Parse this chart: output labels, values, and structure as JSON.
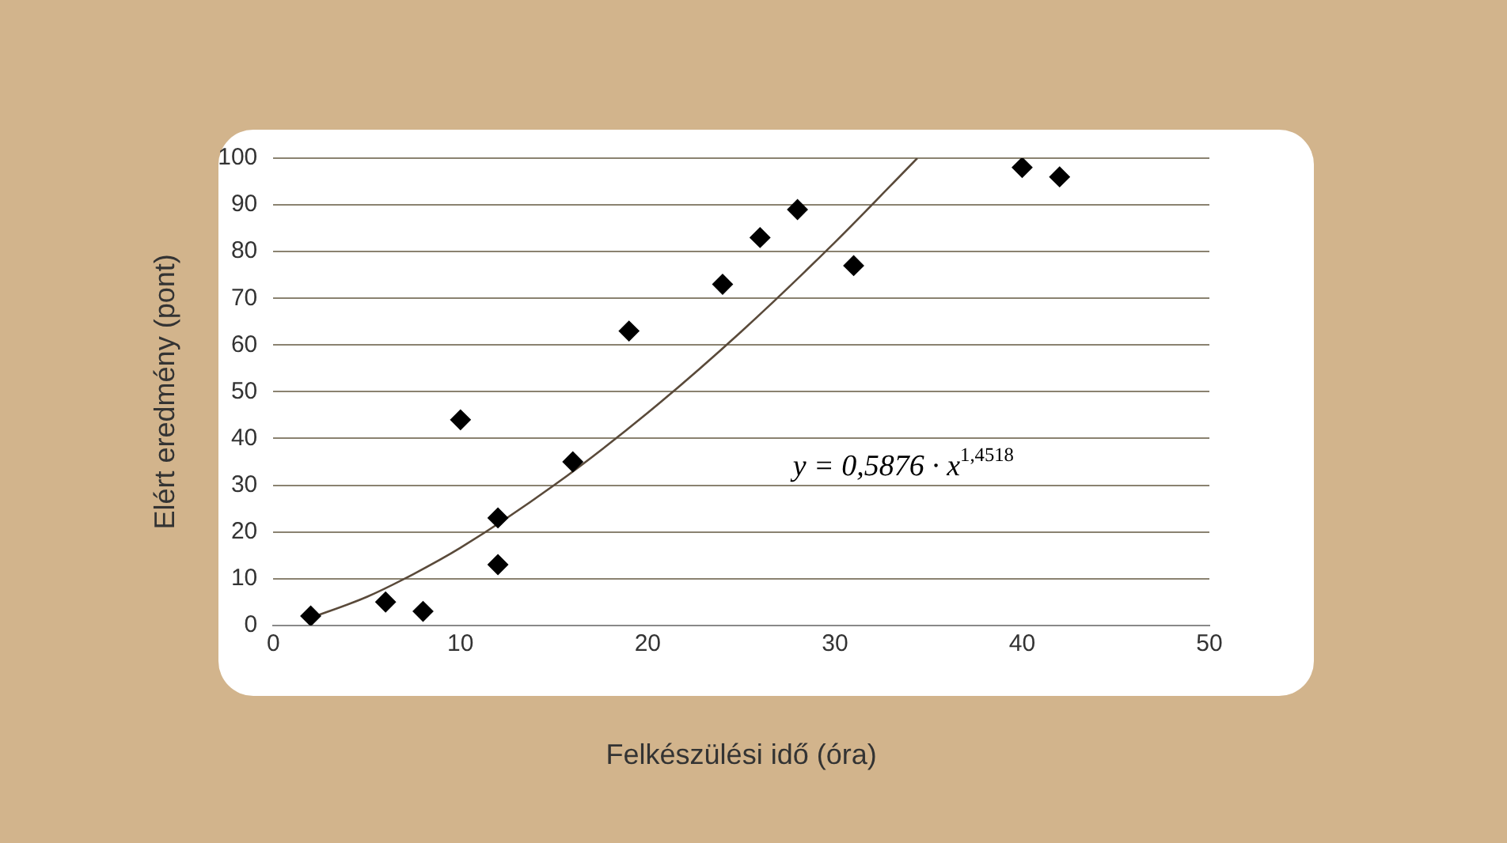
{
  "chart_data": {
    "type": "scatter",
    "xlabel": "Felkészülési idő (óra)",
    "ylabel": "Elért eredmény (pont)",
    "series": [
      {
        "type": "scatter",
        "marker": "diamond",
        "color": "#000000",
        "x": [
          2,
          6,
          8,
          10,
          12,
          12,
          16,
          19,
          24,
          26,
          28,
          31,
          40,
          42
        ],
        "values": [
          2,
          5,
          3,
          44,
          23,
          13,
          35,
          63,
          73,
          83,
          89,
          77,
          98,
          96
        ]
      },
      {
        "type": "line",
        "marker": "none",
        "color": "#5a4a3a",
        "x": [
          2,
          5,
          7.5,
          10,
          15,
          20,
          25,
          30,
          34.4
        ],
        "values": [
          1.6,
          6.1,
          11,
          16.6,
          30,
          45.5,
          62.9,
          82,
          100
        ]
      }
    ],
    "xlim": [
      0,
      50
    ],
    "xticks": [
      0,
      10,
      20,
      30,
      40,
      50
    ],
    "ylim": [
      0,
      100
    ],
    "yticks": [
      0,
      10,
      20,
      30,
      40,
      50,
      60,
      70,
      80,
      90,
      100
    ],
    "grid": "y",
    "legend": false,
    "annotations": [
      "y = 0,5876 · x$^{1,4518}$"
    ]
  }
}
